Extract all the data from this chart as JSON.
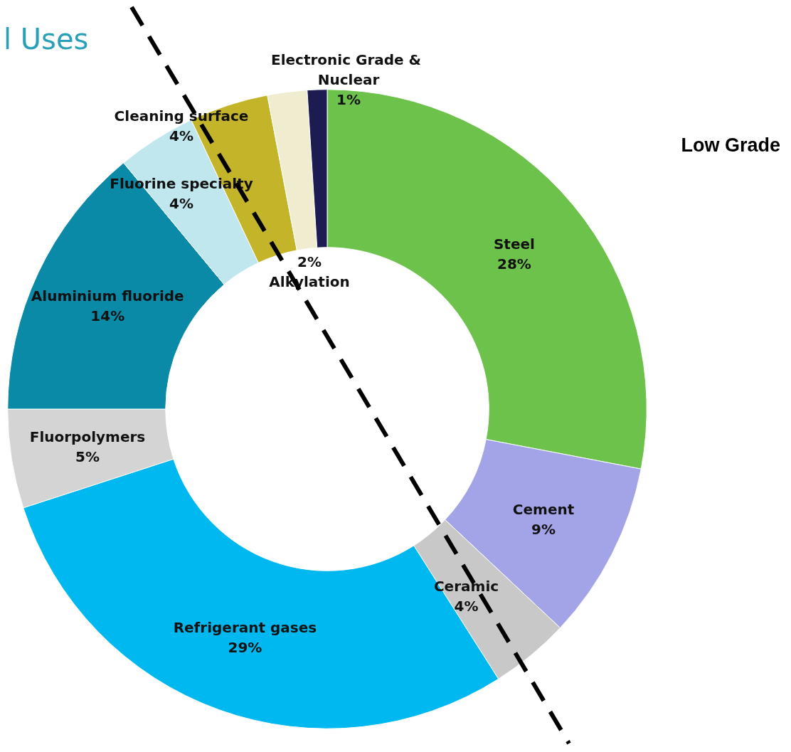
{
  "chart_data": {
    "type": "donut",
    "title": "l Uses",
    "categories": [
      "Steel",
      "Cement",
      "Ceramic",
      "Refrigerant gases",
      "Fluorpolymers",
      "Aluminium fluoride",
      "Fluorine specialty",
      "Cleaning surface",
      "Alkylation",
      "Electronic Grade & Nuclear"
    ],
    "values": [
      28,
      9,
      4,
      29,
      5,
      14,
      4,
      4,
      2,
      1
    ],
    "colors": [
      "#6cc24a",
      "#a3a3e8",
      "#c8c8c8",
      "#00b8f0",
      "#d4d4d4",
      "#0a8aa6",
      "#c0e6ee",
      "#c3b42a",
      "#f0ecd0",
      "#1c1c50"
    ],
    "annotations": [
      "Low Grade"
    ],
    "value_labels": [
      "28%",
      "9%",
      "4%",
      "29%",
      "5%",
      "14%",
      "4%",
      "4%",
      "2%",
      "1%"
    ],
    "legend": false
  }
}
